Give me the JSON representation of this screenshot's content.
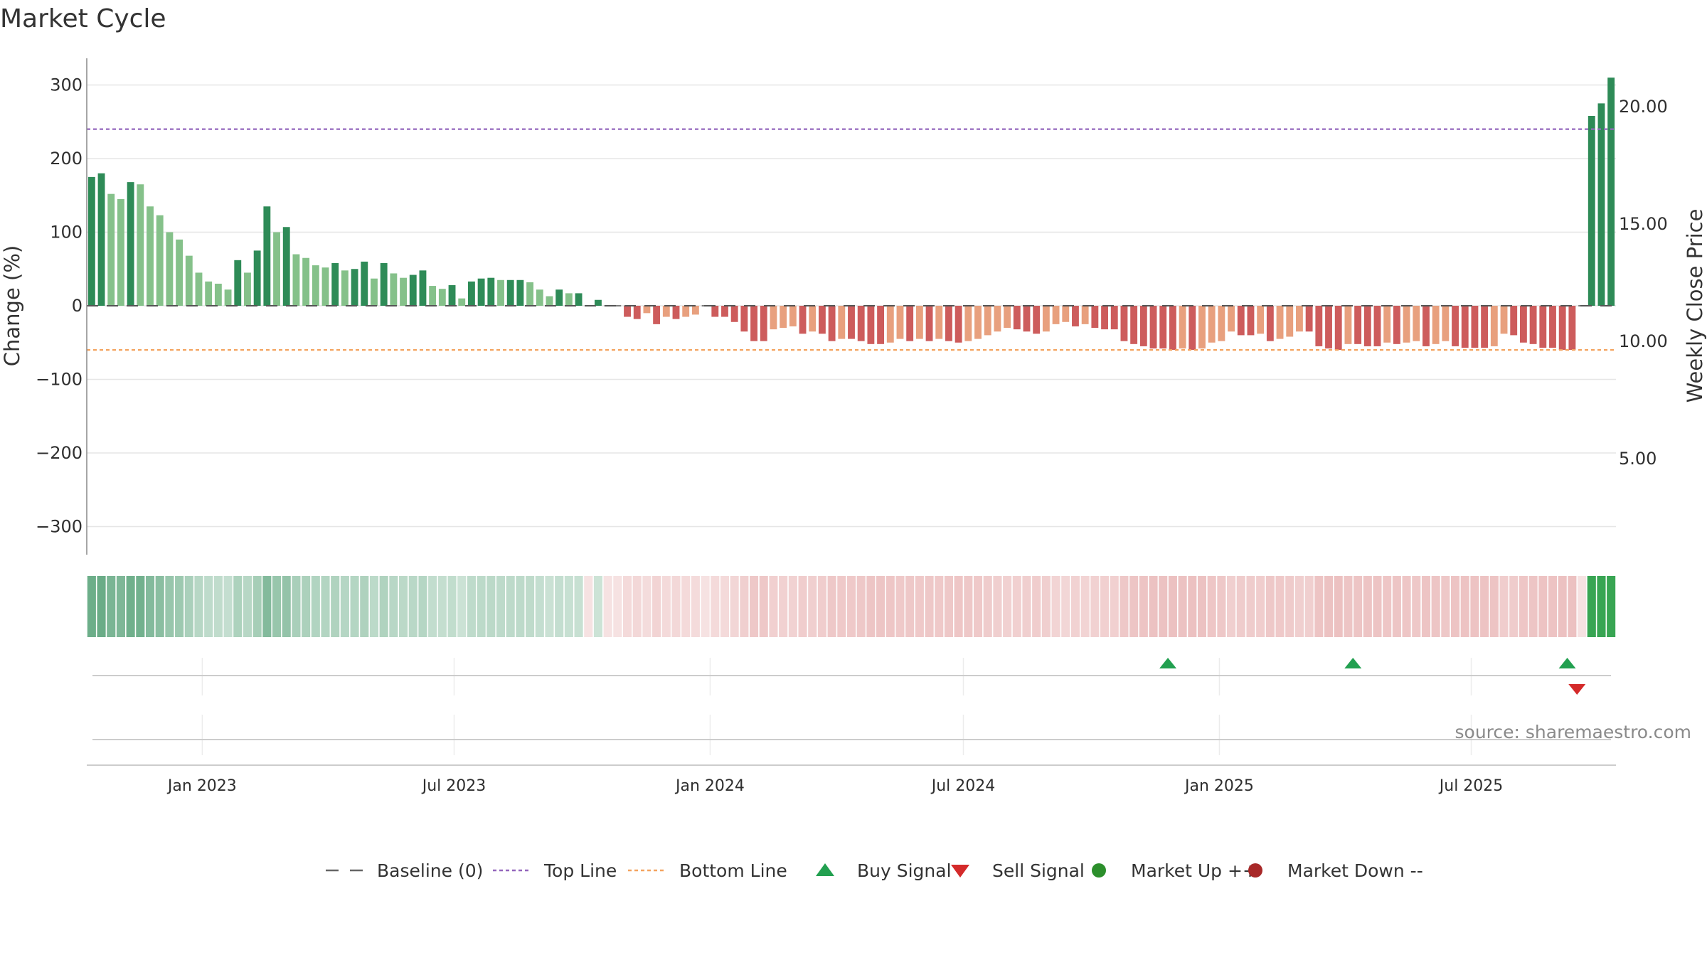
{
  "title": "Market Cycle",
  "source_text": "source: sharemaestro.com",
  "chart_data": {
    "type": "bar",
    "y_left_label": "Change (%)",
    "y_right_label": "Weekly Close Price",
    "y_left_ticks": [
      "300",
      "200",
      "100",
      "0",
      "−100",
      "−200",
      "−300"
    ],
    "y_left_range": [
      -330,
      340
    ],
    "y_right_ticks": [
      "20.00",
      "15.00",
      "10.00",
      "5.00"
    ],
    "top_line": 240,
    "bottom_line": -60,
    "x_range": [
      "2022-10-10",
      "2025-10-13"
    ],
    "x_ticks": [
      {
        "date": "2023-01-01",
        "label": "Jan 2023"
      },
      {
        "date": "2023-07-01",
        "label": "Jul 2023"
      },
      {
        "date": "2024-01-01",
        "label": "Jan 2024"
      },
      {
        "date": "2024-07-01",
        "label": "Jul 2024"
      },
      {
        "date": "2025-01-01",
        "label": "Jan 2025"
      },
      {
        "date": "2025-07-01",
        "label": "Jul 2025"
      }
    ],
    "values": [
      175,
      180,
      152,
      145,
      168,
      165,
      135,
      123,
      100,
      90,
      68,
      45,
      33,
      30,
      22,
      62,
      45,
      75,
      135,
      100,
      107,
      70,
      65,
      55,
      52,
      58,
      48,
      50,
      60,
      37,
      58,
      44,
      38,
      42,
      48,
      27,
      23,
      28,
      10,
      33,
      37,
      38,
      35,
      35,
      35,
      32,
      22,
      13,
      22,
      17,
      17,
      0,
      8,
      0,
      0,
      -15,
      -18,
      -10,
      -25,
      -15,
      -18,
      -15,
      -12,
      0,
      -15,
      -15,
      -22,
      -35,
      -48,
      -48,
      -32,
      -30,
      -28,
      -38,
      -35,
      -38,
      -48,
      -45,
      -45,
      -48,
      -52,
      -52,
      -50,
      -45,
      -48,
      -45,
      -48,
      -45,
      -48,
      -50,
      -48,
      -45,
      -40,
      -35,
      -30,
      -32,
      -35,
      -38,
      -35,
      -25,
      -22,
      -28,
      -25,
      -30,
      -32,
      -32,
      -48,
      -52,
      -55,
      -58,
      -58,
      -60,
      -58,
      -60,
      -58,
      -50,
      -48,
      -35,
      -40,
      -40,
      -38,
      -48,
      -45,
      -42,
      -35,
      -35,
      -55,
      -58,
      -60,
      -52,
      -52,
      -55,
      -55,
      -50,
      -52,
      -50,
      -48,
      -55,
      -52,
      -48,
      -55,
      -57,
      -57,
      -57,
      -55,
      -38,
      -40,
      -50,
      -52,
      -57,
      -57,
      -60,
      -60,
      0,
      258,
      275,
      310
    ],
    "colors_positive": [
      "#2e8b57",
      "#85c18a"
    ],
    "colors_negative": [
      "#cd5c5c",
      "#e8a07e"
    ],
    "bullish_strip_color": "#2e8b57",
    "bearish_strip_color": "#cd5c5c",
    "buy_signals": [
      "2024-11-25",
      "2025-04-07",
      "2025-09-08"
    ],
    "sell_signals": [
      "2025-09-15"
    ],
    "signal_colors": {
      "buy": "#22a050",
      "sell": "#d42a2a"
    }
  },
  "legend": [
    {
      "label": "Baseline (0)",
      "symbol": "dash",
      "color": "#666666"
    },
    {
      "label": "Top Line",
      "symbol": "dotted",
      "color": "#9467bd"
    },
    {
      "label": "Bottom Line",
      "symbol": "dotted",
      "color": "#f4a460"
    },
    {
      "label": "Buy Signal",
      "symbol": "triangle-up",
      "color": "#22a050"
    },
    {
      "label": "Sell Signal",
      "symbol": "triangle-down",
      "color": "#d42a2a"
    },
    {
      "label": "Market Up ++",
      "symbol": "circle",
      "color": "#2c8f2c"
    },
    {
      "label": "Market Down --",
      "symbol": "circle",
      "color": "#a82828"
    }
  ]
}
